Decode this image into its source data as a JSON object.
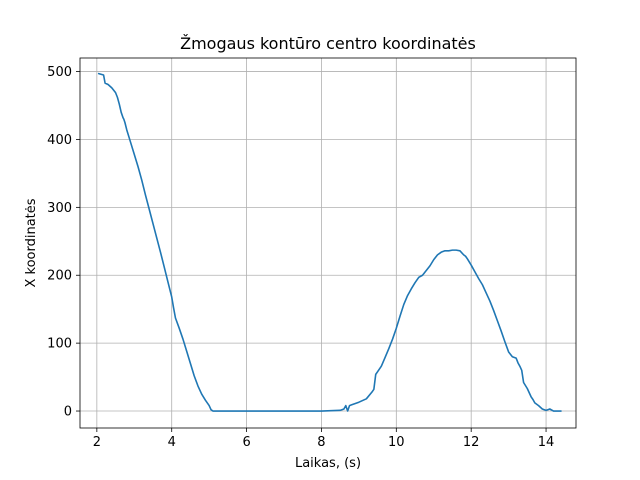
{
  "chart_data": {
    "type": "line",
    "title": "Žmogaus kontūro centro koordinatės",
    "xlabel": "Laikas, (s)",
    "ylabel": "X koordinatės",
    "xlim": [
      1.55,
      14.8
    ],
    "ylim": [
      -25,
      520
    ],
    "xticks": [
      2,
      4,
      6,
      8,
      10,
      12,
      14
    ],
    "yticks": [
      0,
      100,
      200,
      300,
      400,
      500
    ],
    "grid": true,
    "color": "#1f77b4",
    "series": [
      {
        "x": [
          2.05,
          2.18,
          2.22,
          2.3,
          2.4,
          2.5,
          2.55,
          2.6,
          2.65,
          2.7,
          2.72,
          2.75,
          2.8,
          2.9,
          3.0,
          3.1,
          3.2,
          3.3,
          3.4,
          3.5,
          3.6,
          3.7,
          3.8,
          3.9,
          4.0,
          4.05,
          4.1,
          4.2,
          4.3,
          4.4,
          4.5,
          4.6,
          4.7,
          4.8,
          4.9,
          5.0,
          5.05,
          5.1,
          5.2,
          5.3,
          5.35,
          5.4,
          5.5,
          5.6,
          5.7,
          5.8,
          6.0,
          6.5,
          7.0,
          7.5,
          8.0,
          8.5,
          8.6,
          8.65,
          8.7,
          8.75,
          8.8,
          9.0,
          9.2,
          9.35,
          9.4,
          9.45,
          9.5,
          9.6,
          9.7,
          9.8,
          9.9,
          10.0,
          10.1,
          10.2,
          10.3,
          10.4,
          10.5,
          10.6,
          10.7,
          10.8,
          10.9,
          11.0,
          11.1,
          11.2,
          11.3,
          11.4,
          11.5,
          11.6,
          11.7,
          11.8,
          11.85,
          11.9,
          12.0,
          12.1,
          12.2,
          12.3,
          12.4,
          12.5,
          12.6,
          12.7,
          12.8,
          12.9,
          13.0,
          13.1,
          13.2,
          13.25,
          13.3,
          13.35,
          13.4,
          13.5,
          13.6,
          13.65,
          13.7,
          13.8,
          13.9,
          14.0,
          14.1,
          14.2,
          14.3,
          14.35,
          14.4
        ],
        "y": [
          497,
          495,
          483,
          481,
          476,
          469,
          462,
          452,
          440,
          432,
          430,
          425,
          414,
          396,
          378,
          360,
          340,
          318,
          297,
          276,
          255,
          234,
          212,
          190,
          168,
          152,
          137,
          122,
          106,
          88,
          70,
          52,
          37,
          25,
          16,
          8,
          2,
          0,
          0,
          0,
          0,
          0,
          0,
          0,
          0,
          0,
          0,
          0,
          0,
          0,
          0,
          1,
          3,
          8,
          0,
          8,
          9,
          13,
          18,
          28,
          32,
          54,
          58,
          66,
          79,
          92,
          106,
          122,
          140,
          157,
          170,
          180,
          189,
          197,
          200,
          207,
          214,
          223,
          230,
          234,
          236,
          236,
          237,
          237,
          236,
          230,
          228,
          224,
          215,
          205,
          195,
          186,
          174,
          162,
          148,
          133,
          118,
          102,
          87,
          80,
          78,
          71,
          66,
          60,
          42,
          33,
          21,
          17,
          12,
          8,
          3,
          1,
          3,
          0,
          0,
          0,
          0
        ]
      }
    ]
  }
}
